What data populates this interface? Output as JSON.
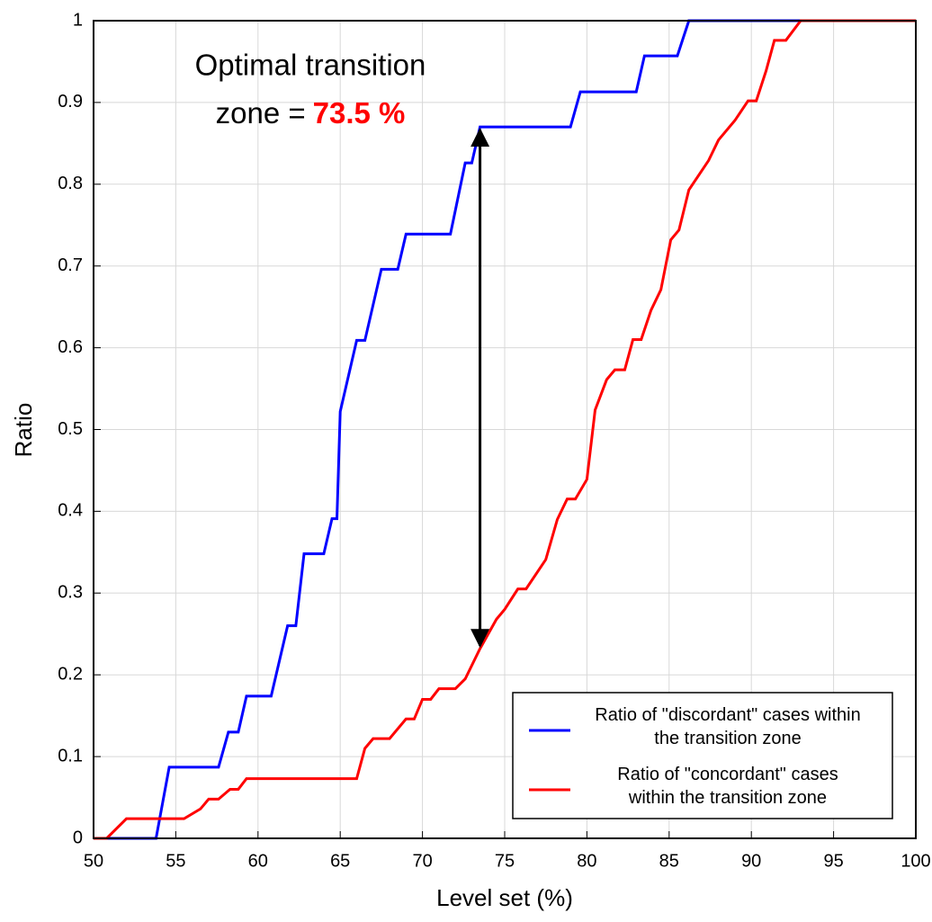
{
  "chart_data": {
    "type": "line",
    "xlabel": "Level set (%)",
    "ylabel": "Ratio",
    "xlim": [
      50,
      100
    ],
    "xticks": [
      50,
      55,
      60,
      65,
      70,
      75,
      80,
      85,
      90,
      95,
      100
    ],
    "ylim": [
      0,
      1
    ],
    "yticks": [
      0,
      0.1,
      0.2,
      0.3,
      0.4,
      0.5,
      0.6,
      0.7,
      0.8,
      0.9,
      1
    ],
    "grid": true,
    "legend": "lower right",
    "annotation": {
      "lines": [
        "Optimal transition",
        "zone ="
      ],
      "highlight": "73.5 %",
      "highlight_color": "#ff0000",
      "arrow_x": 73.5,
      "arrow_y": [
        0.232,
        0.87
      ]
    },
    "series": [
      {
        "name": "Ratio of \"discordant\" cases within the transition zone",
        "color": "#0000ff",
        "x": [
          50,
          53.8,
          54.6,
          57.6,
          58.2,
          58.8,
          59.3,
          60.8,
          61.8,
          62.3,
          62.8,
          64,
          64.5,
          64.8,
          65,
          66,
          66.5,
          67.5,
          68.5,
          69,
          71.7,
          72.6,
          73,
          73.5,
          79,
          79.6,
          83,
          83.5,
          85.5,
          86.2,
          100
        ],
        "values": [
          0,
          0,
          0.087,
          0.087,
          0.13,
          0.13,
          0.174,
          0.174,
          0.26,
          0.26,
          0.348,
          0.348,
          0.391,
          0.391,
          0.522,
          0.609,
          0.609,
          0.696,
          0.696,
          0.739,
          0.739,
          0.826,
          0.826,
          0.87,
          0.87,
          0.913,
          0.913,
          0.957,
          0.957,
          1,
          1
        ]
      },
      {
        "name": "Ratio of \"concordant\" cases within the transition zone",
        "color": "#ff0000",
        "x": [
          50,
          50.8,
          52,
          55.5,
          56.5,
          57,
          57.6,
          58.3,
          58.8,
          59.3,
          66,
          66.5,
          67,
          68,
          69,
          69.5,
          70,
          70.5,
          71,
          72,
          72.6,
          73.5,
          74.5,
          75,
          75.8,
          76.3,
          77.5,
          78.2,
          78.8,
          79.3,
          80,
          80.5,
          81.2,
          81.7,
          82.3,
          82.8,
          83.3,
          83.9,
          84.5,
          85.1,
          85.6,
          86.2,
          87.4,
          88,
          89,
          89.8,
          90.3,
          90.9,
          91.4,
          92.1,
          93,
          100
        ],
        "values": [
          0,
          0,
          0.024,
          0.024,
          0.036,
          0.048,
          0.048,
          0.06,
          0.06,
          0.073,
          0.073,
          0.11,
          0.122,
          0.122,
          0.146,
          0.146,
          0.17,
          0.17,
          0.183,
          0.183,
          0.195,
          0.232,
          0.268,
          0.28,
          0.305,
          0.305,
          0.341,
          0.39,
          0.415,
          0.415,
          0.439,
          0.524,
          0.561,
          0.573,
          0.573,
          0.61,
          0.61,
          0.646,
          0.671,
          0.732,
          0.744,
          0.793,
          0.829,
          0.854,
          0.878,
          0.902,
          0.902,
          0.939,
          0.976,
          0.976,
          1,
          1
        ]
      }
    ]
  }
}
